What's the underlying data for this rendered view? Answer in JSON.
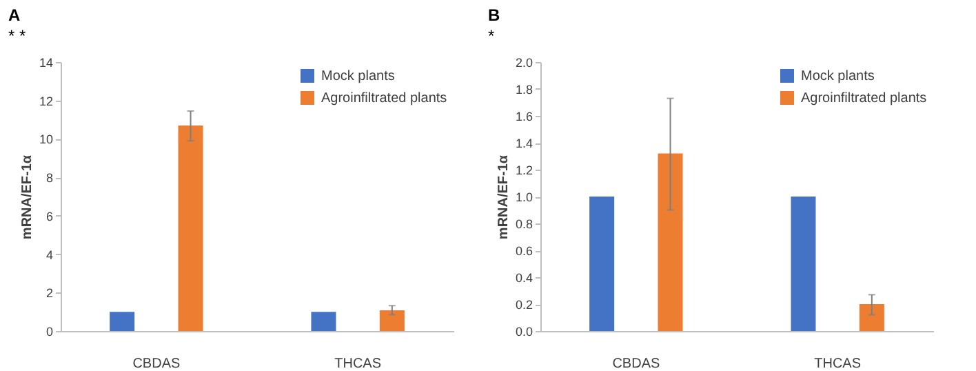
{
  "chart_data": [
    {
      "type": "bar",
      "title": "A",
      "ylabel": "mRNA/EF-1α",
      "categories": [
        "CBDAS",
        "THCAS"
      ],
      "series": [
        {
          "name": "Mock plants",
          "color": "#4472c4",
          "values": [
            1,
            1
          ]
        },
        {
          "name": "Agroinfiltrated plants",
          "color": "#ed7d31",
          "values": [
            10.7,
            1.08
          ],
          "errors": [
            [
              9.9,
              11.45
            ],
            [
              0.85,
              1.32
            ]
          ]
        }
      ],
      "ylim": [
        0,
        14
      ],
      "yticks": [
        0,
        2,
        4,
        6,
        8,
        10,
        12,
        14
      ],
      "grid": false,
      "legend": "top right",
      "annotations": [
        "* *"
      ]
    },
    {
      "type": "bar",
      "title": "B",
      "ylabel": "mRNA/EF-1α",
      "categories": [
        "CBDAS",
        "THCAS"
      ],
      "series": [
        {
          "name": "Mock plants",
          "color": "#4472c4",
          "values": [
            1,
            1
          ]
        },
        {
          "name": "Agroinfiltrated plants",
          "color": "#ed7d31",
          "values": [
            1.32,
            0.2
          ],
          "errors": [
            [
              0.9,
              1.73
            ],
            [
              0.12,
              0.27
            ]
          ]
        }
      ],
      "ylim": [
        0,
        2
      ],
      "yticks": [
        {
          "value": 0,
          "label": "0.0"
        },
        0.2,
        0.4,
        0.6,
        0.8,
        {
          "value": 1,
          "label": "1.0"
        },
        1.2,
        1.4,
        1.6,
        1.8,
        {
          "value": 2,
          "label": "2.0"
        }
      ],
      "grid": false,
      "legend": "top right",
      "annotations": [
        "*"
      ]
    }
  ]
}
